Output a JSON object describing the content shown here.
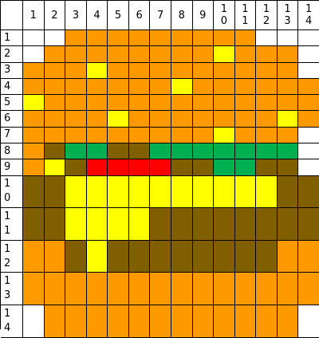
{
  "palette": {
    "W": "#ffffff",
    "O": "#ff9900",
    "Y": "#ffff00",
    "B": "#7f5f00",
    "G": "#00b050",
    "R": "#ff0000"
  },
  "column_headers": [
    "1",
    "2",
    "3",
    "4",
    "5",
    "6",
    "7",
    "8",
    "9",
    "1\n0",
    "1\n1",
    "1\n2",
    "1\n3",
    "1\n4"
  ],
  "row_headers": [
    "1",
    "2",
    "3",
    "4",
    "5",
    "6",
    "7",
    "8",
    "9",
    "1\n0",
    "1\n1",
    "1\n2",
    "1\n3",
    "1\n4"
  ],
  "pixel_rows": [
    "WWOOOOOOOOOWWW",
    "WOOOOOOOOYOOOW",
    "OOOYOOOOOOOOOW",
    "OOOOOOOYOOOOOO",
    "YOOOOOOOOOOOOO",
    "OOOOYOOOOOOOYO",
    "OOOOOOOOOYOOOW",
    "OBGGBBGGGGGGGW",
    "OYBRRRRBBGGBBW",
    "BBYYYYYYYYYYBB",
    "BBYYYYBBBBBBBB",
    "OOBYBBBBBBBBOO",
    "OOOOOOOOOOOOOO",
    "WOOOOOOOOOOOOW"
  ]
}
